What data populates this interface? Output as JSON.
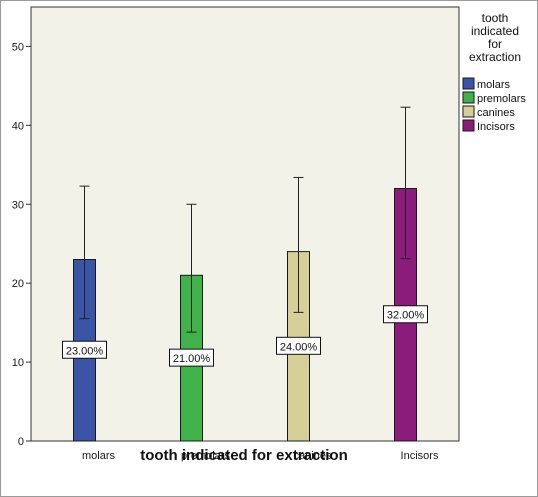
{
  "chart_data": {
    "type": "bar",
    "categories": [
      "molars",
      "premolars",
      "canines",
      "Incisors"
    ],
    "values": [
      23,
      21,
      24,
      32
    ],
    "data_labels": [
      "23.00%",
      "21.00%",
      "24.00%",
      "32.00%"
    ],
    "error_bars": [
      {
        "low": 15.5,
        "high": 32.3
      },
      {
        "low": 13.8,
        "high": 30.0
      },
      {
        "low": 16.3,
        "high": 33.4
      },
      {
        "low": 23.1,
        "high": 42.3
      }
    ],
    "colors": [
      "#3a55a8",
      "#3fb34a",
      "#d6cf98",
      "#8c1c7c"
    ],
    "xlabel": "tooth indicated for extraction",
    "ylabel": "",
    "ylim": [
      0,
      55
    ],
    "yticks": [
      "0",
      "10",
      "20",
      "30",
      "40",
      "50"
    ],
    "ytick_values": [
      0,
      10,
      20,
      30,
      40,
      50
    ],
    "legend": {
      "title_lines": [
        "tooth",
        "indicated",
        "for",
        "extraction"
      ],
      "placement": "right",
      "entries": [
        "molars",
        "premolars",
        "canines",
        "Incisors"
      ]
    },
    "plot_background": "#f2f2e8",
    "grid": false
  }
}
